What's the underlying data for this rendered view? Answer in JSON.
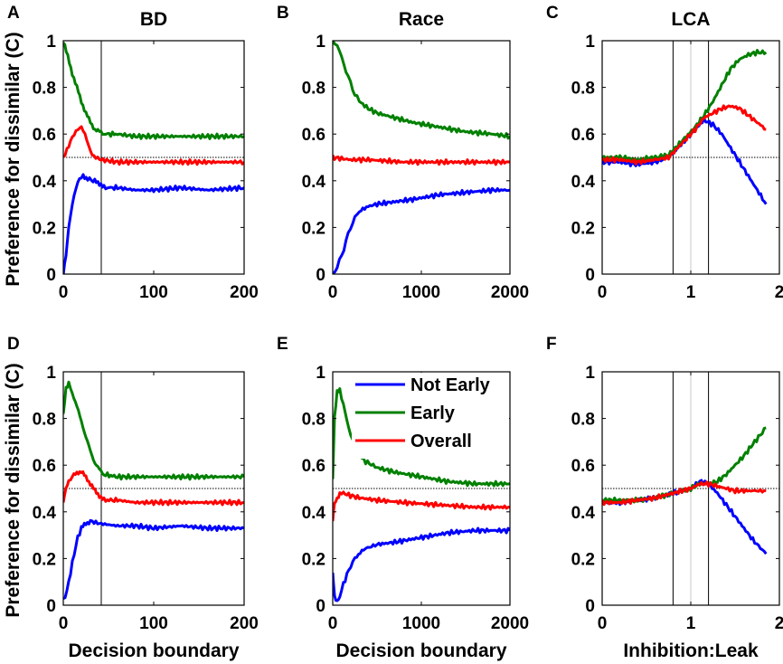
{
  "figure": {
    "ylabel": "Preference for dissimilar (C)",
    "xlabels": {
      "left": "Decision boundary",
      "middle": "Decision boundary",
      "right": "Inhibition:Leak"
    }
  },
  "legend": {
    "entries": [
      {
        "name": "Not Early",
        "color": "#0000ff"
      },
      {
        "name": "Early",
        "color": "#008000"
      },
      {
        "name": "Overall",
        "color": "#ff0000"
      }
    ]
  },
  "chart_data": [
    {
      "id": "A",
      "letter": "A",
      "title": "BD",
      "type": "line",
      "xlim": [
        0,
        200
      ],
      "ylim": [
        0,
        1
      ],
      "xticks": [
        0,
        100,
        200
      ],
      "xtick_labels": [
        "0",
        "100",
        "200"
      ],
      "yticks": [
        0,
        0.2,
        0.4,
        0.6,
        0.8,
        1
      ],
      "ytick_labels": [
        "0",
        "0.2",
        "0.4",
        "0.6",
        "0.8",
        "1"
      ],
      "show_ylabel": true,
      "show_xlabel": false,
      "vlines": [
        {
          "x": 42,
          "color": "#000000"
        }
      ],
      "hline": 0.5,
      "series": [
        {
          "name": "Not Early",
          "color": "#0000ff",
          "x": [
            0,
            3,
            6,
            10,
            14,
            18,
            22,
            27,
            33,
            40,
            45,
            60,
            80,
            100,
            130,
            160,
            200
          ],
          "y": [
            0.0,
            0.08,
            0.2,
            0.3,
            0.37,
            0.41,
            0.42,
            0.41,
            0.4,
            0.39,
            0.37,
            0.37,
            0.36,
            0.36,
            0.37,
            0.36,
            0.37
          ]
        },
        {
          "name": "Early",
          "color": "#008000",
          "x": [
            0,
            5,
            10,
            15,
            20,
            25,
            30,
            35,
            40,
            45,
            60,
            80,
            100,
            130,
            160,
            200
          ],
          "y": [
            1.0,
            0.93,
            0.86,
            0.8,
            0.74,
            0.69,
            0.65,
            0.62,
            0.61,
            0.6,
            0.6,
            0.59,
            0.59,
            0.59,
            0.59,
            0.59
          ]
        },
        {
          "name": "Overall",
          "color": "#ff0000",
          "x": [
            0,
            4,
            8,
            12,
            16,
            20,
            24,
            28,
            32,
            36,
            42,
            60,
            80,
            100,
            130,
            160,
            200
          ],
          "y": [
            0.5,
            0.53,
            0.57,
            0.6,
            0.62,
            0.63,
            0.6,
            0.55,
            0.51,
            0.5,
            0.49,
            0.48,
            0.48,
            0.48,
            0.48,
            0.48,
            0.48
          ]
        }
      ]
    },
    {
      "id": "B",
      "letter": "B",
      "title": "Race",
      "type": "line",
      "xlim": [
        0,
        2000
      ],
      "ylim": [
        0,
        1
      ],
      "xticks": [
        0,
        1000,
        2000
      ],
      "xtick_labels": [
        "0",
        "1000",
        "2000"
      ],
      "yticks": [
        0,
        0.2,
        0.4,
        0.6,
        0.8,
        1
      ],
      "ytick_labels": [
        "0",
        "0.2",
        "0.4",
        "0.6",
        "0.8",
        "1"
      ],
      "show_ylabel": false,
      "show_xlabel": false,
      "vlines": [],
      "hline": null,
      "series": [
        {
          "name": "Not Early",
          "color": "#0000ff",
          "x": [
            0,
            50,
            100,
            150,
            200,
            250,
            300,
            400,
            500,
            700,
            900,
            1200,
            1500,
            1800,
            2000
          ],
          "y": [
            0.0,
            0.03,
            0.08,
            0.14,
            0.2,
            0.24,
            0.27,
            0.29,
            0.3,
            0.31,
            0.32,
            0.34,
            0.35,
            0.36,
            0.36
          ]
        },
        {
          "name": "Early",
          "color": "#008000",
          "x": [
            0,
            50,
            100,
            150,
            200,
            250,
            300,
            400,
            500,
            700,
            900,
            1200,
            1500,
            1800,
            2000
          ],
          "y": [
            1.0,
            0.98,
            0.93,
            0.87,
            0.82,
            0.77,
            0.74,
            0.71,
            0.69,
            0.67,
            0.65,
            0.63,
            0.61,
            0.6,
            0.59
          ]
        },
        {
          "name": "Overall",
          "color": "#ff0000",
          "x": [
            0,
            200,
            400,
            800,
            1200,
            1600,
            2000
          ],
          "y": [
            0.5,
            0.49,
            0.49,
            0.48,
            0.48,
            0.48,
            0.48
          ]
        }
      ]
    },
    {
      "id": "C",
      "letter": "C",
      "title": "LCA",
      "type": "line",
      "xlim": [
        0,
        2
      ],
      "ylim": [
        0,
        1
      ],
      "xticks": [
        0,
        1,
        2
      ],
      "xtick_labels": [
        "0",
        "1",
        "2"
      ],
      "yticks": [
        0,
        0.2,
        0.4,
        0.6,
        0.8,
        1
      ],
      "ytick_labels": [
        "0",
        "0.2",
        "0.4",
        "0.6",
        "0.8",
        "1"
      ],
      "show_ylabel": false,
      "show_xlabel": false,
      "vlines": [
        {
          "x": 0.8,
          "color": "#000000"
        },
        {
          "x": 1.0,
          "color": "#c8c8c8"
        },
        {
          "x": 1.2,
          "color": "#000000"
        }
      ],
      "hline": 0.5,
      "series": [
        {
          "name": "Not Early",
          "color": "#0000ff",
          "x": [
            0.0,
            0.2,
            0.4,
            0.6,
            0.75,
            0.85,
            0.95,
            1.05,
            1.15,
            1.25,
            1.35,
            1.45,
            1.55,
            1.65,
            1.75,
            1.85
          ],
          "y": [
            0.48,
            0.48,
            0.47,
            0.48,
            0.5,
            0.54,
            0.58,
            0.62,
            0.66,
            0.64,
            0.6,
            0.54,
            0.48,
            0.42,
            0.36,
            0.3
          ]
        },
        {
          "name": "Early",
          "color": "#008000",
          "x": [
            0.0,
            0.2,
            0.4,
            0.6,
            0.75,
            0.85,
            0.95,
            1.05,
            1.15,
            1.25,
            1.35,
            1.45,
            1.55,
            1.65,
            1.75,
            1.85
          ],
          "y": [
            0.5,
            0.5,
            0.49,
            0.5,
            0.51,
            0.55,
            0.59,
            0.63,
            0.68,
            0.74,
            0.81,
            0.88,
            0.92,
            0.94,
            0.95,
            0.95
          ]
        },
        {
          "name": "Overall",
          "color": "#ff0000",
          "x": [
            0.0,
            0.2,
            0.4,
            0.6,
            0.75,
            0.85,
            0.95,
            1.05,
            1.15,
            1.25,
            1.35,
            1.45,
            1.55,
            1.65,
            1.75,
            1.85
          ],
          "y": [
            0.49,
            0.49,
            0.48,
            0.49,
            0.5,
            0.54,
            0.58,
            0.62,
            0.67,
            0.69,
            0.71,
            0.72,
            0.71,
            0.68,
            0.65,
            0.62
          ]
        }
      ]
    },
    {
      "id": "D",
      "letter": "D",
      "title": "",
      "type": "line",
      "xlim": [
        0,
        200
      ],
      "ylim": [
        0,
        1
      ],
      "xticks": [
        0,
        100,
        200
      ],
      "xtick_labels": [
        "0",
        "100",
        "200"
      ],
      "yticks": [
        0,
        0.2,
        0.4,
        0.6,
        0.8,
        1
      ],
      "ytick_labels": [
        "0",
        "0.2",
        "0.4",
        "0.6",
        "0.8",
        "1"
      ],
      "show_ylabel": true,
      "show_xlabel": "left",
      "vlines": [
        {
          "x": 42,
          "color": "#000000"
        }
      ],
      "hline": 0.5,
      "series": [
        {
          "name": "Not Early",
          "color": "#0000ff",
          "x": [
            0,
            4,
            8,
            12,
            16,
            20,
            25,
            30,
            40,
            60,
            80,
            100,
            130,
            160,
            200
          ],
          "y": [
            0.02,
            0.06,
            0.14,
            0.22,
            0.29,
            0.33,
            0.35,
            0.36,
            0.35,
            0.34,
            0.34,
            0.33,
            0.34,
            0.33,
            0.33
          ]
        },
        {
          "name": "Early",
          "color": "#008000",
          "x": [
            0,
            3,
            6,
            10,
            15,
            20,
            25,
            30,
            35,
            40,
            45,
            60,
            80,
            100,
            130,
            160,
            200
          ],
          "y": [
            0.82,
            0.93,
            0.95,
            0.91,
            0.85,
            0.79,
            0.72,
            0.66,
            0.61,
            0.58,
            0.56,
            0.55,
            0.55,
            0.55,
            0.55,
            0.55,
            0.55
          ]
        },
        {
          "name": "Overall",
          "color": "#ff0000",
          "x": [
            0,
            3,
            6,
            10,
            15,
            20,
            25,
            30,
            35,
            40,
            45,
            60,
            80,
            100,
            130,
            160,
            200
          ],
          "y": [
            0.44,
            0.5,
            0.53,
            0.55,
            0.57,
            0.57,
            0.55,
            0.52,
            0.49,
            0.47,
            0.45,
            0.45,
            0.44,
            0.44,
            0.44,
            0.44,
            0.44
          ]
        }
      ]
    },
    {
      "id": "E",
      "letter": "E",
      "title": "",
      "type": "line",
      "xlim": [
        0,
        2000
      ],
      "ylim": [
        0,
        1
      ],
      "xticks": [
        0,
        1000,
        2000
      ],
      "xtick_labels": [
        "0",
        "1000",
        "2000"
      ],
      "yticks": [
        0,
        0.2,
        0.4,
        0.6,
        0.8,
        1
      ],
      "ytick_labels": [
        "0",
        "0.2",
        "0.4",
        "0.6",
        "0.8",
        "1"
      ],
      "show_ylabel": false,
      "show_xlabel": "middle",
      "vlines": [],
      "hline": 0.5,
      "legend": true,
      "series": [
        {
          "name": "Not Early",
          "color": "#0000ff",
          "x": [
            0,
            20,
            50,
            80,
            120,
            180,
            250,
            350,
            500,
            700,
            1000,
            1300,
            1600,
            2000
          ],
          "y": [
            0.14,
            0.04,
            0.02,
            0.04,
            0.09,
            0.15,
            0.2,
            0.24,
            0.26,
            0.27,
            0.29,
            0.31,
            0.32,
            0.32
          ]
        },
        {
          "name": "Early",
          "color": "#008000",
          "x": [
            0,
            20,
            50,
            80,
            120,
            180,
            250,
            350,
            500,
            700,
            1000,
            1300,
            1600,
            2000
          ],
          "y": [
            0.55,
            0.8,
            0.91,
            0.92,
            0.86,
            0.76,
            0.68,
            0.62,
            0.59,
            0.57,
            0.55,
            0.53,
            0.52,
            0.52
          ]
        },
        {
          "name": "Overall",
          "color": "#ff0000",
          "x": [
            0,
            20,
            50,
            80,
            120,
            200,
            300,
            500,
            800,
            1200,
            1600,
            2000
          ],
          "y": [
            0.36,
            0.44,
            0.46,
            0.48,
            0.48,
            0.47,
            0.46,
            0.45,
            0.44,
            0.43,
            0.42,
            0.42
          ]
        }
      ]
    },
    {
      "id": "F",
      "letter": "F",
      "title": "",
      "type": "line",
      "xlim": [
        0,
        2
      ],
      "ylim": [
        0,
        1
      ],
      "xticks": [
        0,
        1,
        2
      ],
      "xtick_labels": [
        "0",
        "1",
        "2"
      ],
      "yticks": [
        0,
        0.2,
        0.4,
        0.6,
        0.8,
        1
      ],
      "ytick_labels": [
        "0",
        "0.2",
        "0.4",
        "0.6",
        "0.8",
        "1"
      ],
      "show_ylabel": false,
      "show_xlabel": "right",
      "vlines": [
        {
          "x": 0.8,
          "color": "#000000"
        },
        {
          "x": 1.0,
          "color": "#c8c8c8"
        },
        {
          "x": 1.2,
          "color": "#000000"
        }
      ],
      "hline": 0.5,
      "series": [
        {
          "name": "Not Early",
          "color": "#0000ff",
          "x": [
            0.0,
            0.2,
            0.4,
            0.6,
            0.8,
            1.0,
            1.1,
            1.2,
            1.3,
            1.4,
            1.5,
            1.6,
            1.7,
            1.85
          ],
          "y": [
            0.44,
            0.44,
            0.45,
            0.46,
            0.48,
            0.5,
            0.53,
            0.52,
            0.48,
            0.43,
            0.38,
            0.33,
            0.28,
            0.22
          ]
        },
        {
          "name": "Early",
          "color": "#008000",
          "x": [
            0.0,
            0.2,
            0.4,
            0.6,
            0.8,
            1.0,
            1.1,
            1.2,
            1.3,
            1.4,
            1.5,
            1.6,
            1.7,
            1.85
          ],
          "y": [
            0.45,
            0.45,
            0.45,
            0.46,
            0.48,
            0.5,
            0.52,
            0.52,
            0.53,
            0.56,
            0.6,
            0.64,
            0.69,
            0.76
          ]
        },
        {
          "name": "Overall",
          "color": "#ff0000",
          "x": [
            0.0,
            0.2,
            0.4,
            0.6,
            0.8,
            1.0,
            1.1,
            1.2,
            1.3,
            1.4,
            1.5,
            1.6,
            1.7,
            1.85
          ],
          "y": [
            0.44,
            0.44,
            0.45,
            0.46,
            0.48,
            0.5,
            0.52,
            0.52,
            0.51,
            0.5,
            0.49,
            0.49,
            0.49,
            0.49
          ]
        }
      ]
    }
  ]
}
